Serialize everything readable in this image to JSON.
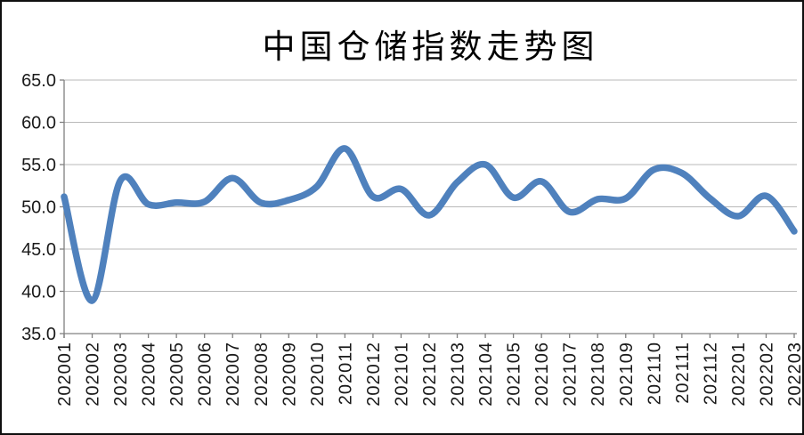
{
  "chart_data": {
    "type": "line",
    "title": "中国仓储指数走势图",
    "series_name": "中国仓储指数",
    "x": [
      "202001",
      "202002",
      "202003",
      "202004",
      "202005",
      "202006",
      "202007",
      "202008",
      "202009",
      "202010",
      "202011",
      "202012",
      "202101",
      "202102",
      "202103",
      "202104",
      "202105",
      "202106",
      "202107",
      "202108",
      "202109",
      "202110",
      "202111",
      "202112",
      "202201",
      "202202",
      "202203"
    ],
    "series": [
      {
        "name": "中国仓储指数",
        "values": [
          51.2,
          38.9,
          53.1,
          50.3,
          50.5,
          50.6,
          53.4,
          50.5,
          50.8,
          52.4,
          56.9,
          51.2,
          52.1,
          49.0,
          52.9,
          55.0,
          51.1,
          53.0,
          49.4,
          50.9,
          51.0,
          54.4,
          54.0,
          51.0,
          48.9,
          51.3,
          47.1
        ]
      }
    ],
    "xlabel": "",
    "ylabel": "",
    "ylim": [
      35.0,
      65.0
    ],
    "ytick_step": 5,
    "ytick_labels": [
      "65.0",
      "60.0",
      "55.0",
      "50.0",
      "45.0",
      "40.0",
      "35.0"
    ],
    "grid": "horizontal",
    "legend": "none",
    "smooth": true,
    "line_color": "#4F81BD",
    "axis_color": "#808080",
    "gridline_color": "#B9B9B9",
    "tick_label_color": "#1a1a1a",
    "title_color": "#000000"
  }
}
